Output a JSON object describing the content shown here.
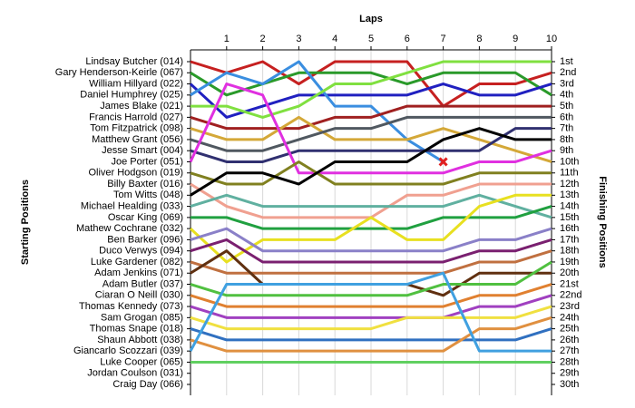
{
  "chart_data": {
    "type": "line",
    "x_label": "Laps",
    "y_label": "Starting Positions",
    "y2_label": "Finishing Positions",
    "x": [
      0,
      1,
      2,
      3,
      4,
      5,
      6,
      7,
      8,
      9,
      10
    ],
    "xlim": [
      0,
      10
    ],
    "xticks": [
      1,
      2,
      3,
      4,
      5,
      6,
      7,
      8,
      9,
      10
    ],
    "ylim": [
      1,
      30
    ],
    "grid": true,
    "finishing_labels": [
      "1st",
      "2nd",
      "3rd",
      "4th",
      "5th",
      "6th",
      "7th",
      "8th",
      "9th",
      "10th",
      "11th",
      "12th",
      "13th",
      "14th",
      "15th",
      "16th",
      "17th",
      "18th",
      "19th",
      "20th",
      "21st",
      "22nd",
      "23rd",
      "24th",
      "25th",
      "26th",
      "27th",
      "28th",
      "29th",
      "30th"
    ],
    "series": [
      {
        "name": "Lindsay Butcher (014)",
        "color": "#c62020",
        "values": [
          1,
          2,
          1,
          3,
          1,
          1,
          1,
          5,
          3,
          3,
          2
        ]
      },
      {
        "name": "Gary Henderson-Keirle (067)",
        "color": "#2a9a2a",
        "values": [
          2,
          4,
          3,
          2,
          2,
          2,
          3,
          2,
          2,
          2,
          4
        ]
      },
      {
        "name": "William Hillyard (022)",
        "color": "#2020c0",
        "values": [
          3,
          6,
          5,
          4,
          4,
          4,
          4,
          3,
          4,
          4,
          3
        ]
      },
      {
        "name": "Daniel Humphrey (025)",
        "color": "#3a8ee0",
        "values": [
          4,
          2,
          3,
          1,
          5,
          5,
          8,
          10,
          null,
          null,
          null
        ]
      },
      {
        "name": "James Blake (021)",
        "color": "#80e040",
        "values": [
          5,
          5,
          6,
          5,
          3,
          3,
          2,
          1,
          1,
          1,
          1
        ]
      },
      {
        "name": "Francis Harrold (027)",
        "color": "#a02020",
        "values": [
          6,
          7,
          7,
          7,
          6,
          6,
          5,
          5,
          5,
          5,
          5
        ]
      },
      {
        "name": "Tom Fitzpatrick (098)",
        "color": "#d4a838",
        "values": [
          7,
          8,
          8,
          6,
          8,
          8,
          8,
          7,
          8,
          9,
          10
        ]
      },
      {
        "name": "Matthew Grant (056)",
        "color": "#505860",
        "values": [
          8,
          9,
          9,
          8,
          7,
          7,
          6,
          6,
          6,
          6,
          6
        ]
      },
      {
        "name": "Jesse Smart (004)",
        "color": "#303070",
        "values": [
          9,
          10,
          10,
          9,
          9,
          9,
          9,
          9,
          9,
          7,
          7
        ]
      },
      {
        "name": "Joe Porter (051)",
        "color": "#e030e0",
        "values": [
          10,
          3,
          4,
          11,
          11,
          11,
          11,
          11,
          10,
          10,
          9
        ]
      },
      {
        "name": "Oliver Hodgson (019)",
        "color": "#808020",
        "values": [
          11,
          12,
          12,
          10,
          12,
          12,
          12,
          12,
          11,
          11,
          11
        ]
      },
      {
        "name": "Billy Baxter (016)",
        "color": "#f0a090",
        "values": [
          12,
          14,
          15,
          15,
          15,
          15,
          13,
          13,
          12,
          12,
          12
        ]
      },
      {
        "name": "Tom Witts (048)",
        "color": "#000000",
        "values": [
          13,
          11,
          11,
          12,
          10,
          10,
          10,
          8,
          7,
          8,
          8
        ]
      },
      {
        "name": "Michael Healding (033)",
        "color": "#60b0a0",
        "values": [
          14,
          13,
          14,
          14,
          14,
          14,
          14,
          14,
          13,
          14,
          15
        ]
      },
      {
        "name": "Oscar King (069)",
        "color": "#20a040",
        "values": [
          15,
          15,
          16,
          16,
          16,
          16,
          16,
          15,
          15,
          15,
          14
        ]
      },
      {
        "name": "Mathew Cochrane (032)",
        "color": "#e8e020",
        "values": [
          16,
          19,
          17,
          17,
          17,
          15,
          17,
          17,
          14,
          13,
          13
        ]
      },
      {
        "name": "Ben Barker (096)",
        "color": "#8a80c8",
        "values": [
          17,
          16,
          18,
          18,
          18,
          18,
          18,
          18,
          17,
          17,
          16
        ]
      },
      {
        "name": "Duco Verwys (094)",
        "color": "#7a2070",
        "values": [
          18,
          17,
          19,
          19,
          19,
          19,
          19,
          19,
          18,
          18,
          17
        ]
      },
      {
        "name": "Luke Gardener (082)",
        "color": "#c07040",
        "values": [
          19,
          20,
          20,
          20,
          20,
          20,
          20,
          20,
          19,
          19,
          18
        ]
      },
      {
        "name": "Adam Jenkins (071)",
        "color": "#603010",
        "values": [
          20,
          18,
          21,
          21,
          21,
          21,
          21,
          22,
          20,
          20,
          20
        ]
      },
      {
        "name": "Adam Butler (037)",
        "color": "#50c040",
        "values": [
          21,
          22,
          22,
          22,
          22,
          22,
          22,
          21,
          21,
          21,
          19
        ]
      },
      {
        "name": "Ciaran O Neill (030)",
        "color": "#e08030",
        "values": [
          22,
          23,
          23,
          23,
          23,
          23,
          23,
          23,
          22,
          22,
          21
        ]
      },
      {
        "name": "Thomas Kennedy (073)",
        "color": "#a040c0",
        "values": [
          23,
          24,
          24,
          24,
          24,
          24,
          24,
          24,
          23,
          23,
          22
        ]
      },
      {
        "name": "Sam Grogan (085)",
        "color": "#f0e040",
        "values": [
          24,
          25,
          25,
          25,
          25,
          25,
          24,
          24,
          24,
          24,
          23
        ]
      },
      {
        "name": "Thomas Snape (018)",
        "color": "#3070c0",
        "values": [
          25,
          26,
          26,
          26,
          26,
          26,
          26,
          26,
          26,
          26,
          25
        ]
      },
      {
        "name": "Shaun Abbott (038)",
        "color": "#e09040",
        "values": [
          26,
          27,
          27,
          27,
          27,
          27,
          27,
          27,
          25,
          25,
          24
        ]
      },
      {
        "name": "Giancarlo Scozzari (039)",
        "color": "#40a0e0",
        "values": [
          27,
          21,
          21,
          21,
          21,
          21,
          21,
          20,
          27,
          27,
          27
        ]
      },
      {
        "name": "Luke Cooper (065)",
        "color": "#60d060",
        "values": [
          28,
          28,
          28,
          28,
          28,
          28,
          28,
          28,
          28,
          28,
          28
        ]
      },
      {
        "name": "Jordan Coulson (031)",
        "color": "#999999",
        "values": [
          29,
          null,
          null,
          null,
          null,
          null,
          null,
          null,
          null,
          null,
          null
        ]
      },
      {
        "name": "Craig Day (066)",
        "color": "#999999",
        "values": [
          30,
          null,
          null,
          null,
          null,
          null,
          null,
          null,
          null,
          null,
          null
        ]
      }
    ]
  }
}
